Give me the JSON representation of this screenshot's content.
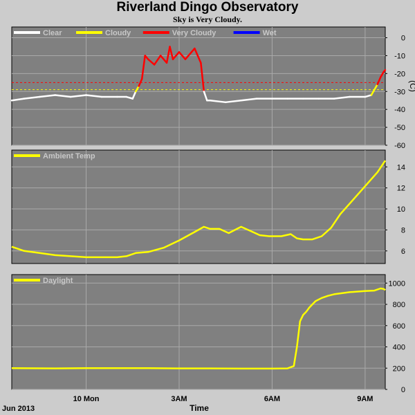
{
  "page": {
    "title": "Riverland Dingo Observatory",
    "subtitle": "Sky is Very Cloudy."
  },
  "colors": {
    "background": "#cccccc",
    "panel": "#808080",
    "grid": "#aaaaaa",
    "clear": "#ffffff",
    "cloudy": "#ffff00",
    "very_cloudy": "#ff0000",
    "wet": "#0000ff",
    "threshold_very_cloudy": "#ff0000",
    "threshold_cloudy": "#ffff00"
  },
  "x_axis": {
    "label": "Time",
    "date_label": "Jun 2013",
    "ticks": [
      {
        "h": 0.0,
        "label": "10 Mon"
      },
      {
        "h": 3.0,
        "label": "3AM"
      },
      {
        "h": 6.0,
        "label": "6AM"
      },
      {
        "h": 9.0,
        "label": "9AM"
      }
    ],
    "range_h": [
      -2.4,
      9.65
    ]
  },
  "chart_data": [
    {
      "type": "line",
      "id": "sky",
      "ylabel": "(C)",
      "ylim": [
        -60,
        6
      ],
      "yticks": [
        0,
        -10,
        -20,
        -30,
        -40,
        -50,
        -60
      ],
      "grid": true,
      "legend": [
        "Clear",
        "Cloudy",
        "Very Cloudy",
        "Wet"
      ],
      "thresholds": {
        "very_cloudy": -25,
        "cloudy": -29
      },
      "x_h": [
        -2.4,
        -2.0,
        -1.5,
        -1.0,
        -0.5,
        0.0,
        0.5,
        1.0,
        1.3,
        1.5,
        1.6,
        1.7,
        1.8,
        1.9,
        2.0,
        2.2,
        2.4,
        2.6,
        2.7,
        2.8,
        3.0,
        3.2,
        3.4,
        3.5,
        3.7,
        3.8,
        3.9,
        4.0,
        4.5,
        5.0,
        5.5,
        6.0,
        6.5,
        7.0,
        7.5,
        8.0,
        8.5,
        9.0,
        9.2,
        9.4,
        9.5,
        9.6,
        9.65
      ],
      "values": [
        -35,
        -34,
        -33,
        -32,
        -33,
        -32,
        -33,
        -33,
        -33,
        -34,
        -30,
        -27,
        -23,
        -10,
        -12,
        -15,
        -10,
        -14,
        -5,
        -12,
        -8,
        -12,
        -8,
        -6,
        -14,
        -30,
        -35,
        -35,
        -36,
        -35,
        -34,
        -34,
        -34,
        -34,
        -34,
        -34,
        -33,
        -33,
        -32,
        -26,
        -22,
        -19,
        -18
      ]
    },
    {
      "type": "line",
      "id": "ambient",
      "ylim": [
        4.8,
        15.6
      ],
      "yticks": [
        6,
        8,
        10,
        12,
        14
      ],
      "grid": true,
      "legend": [
        "Ambient Temp"
      ],
      "x_h": [
        -2.4,
        -2.0,
        -1.5,
        -1.0,
        -0.5,
        0.0,
        0.5,
        1.0,
        1.3,
        1.6,
        2.0,
        2.5,
        3.0,
        3.5,
        3.8,
        4.0,
        4.3,
        4.6,
        4.8,
        5.0,
        5.3,
        5.6,
        5.9,
        6.0,
        6.3,
        6.6,
        6.8,
        7.0,
        7.3,
        7.6,
        7.9,
        8.2,
        8.5,
        8.8,
        9.1,
        9.4,
        9.65
      ],
      "values": [
        6.4,
        6.0,
        5.8,
        5.6,
        5.5,
        5.4,
        5.4,
        5.4,
        5.5,
        5.8,
        5.9,
        6.3,
        7.0,
        7.8,
        8.3,
        8.1,
        8.1,
        7.7,
        8.0,
        8.3,
        7.9,
        7.5,
        7.4,
        7.4,
        7.4,
        7.6,
        7.2,
        7.1,
        7.1,
        7.4,
        8.2,
        9.5,
        10.5,
        11.5,
        12.5,
        13.5,
        14.6
      ]
    },
    {
      "type": "line",
      "id": "daylight",
      "ylim": [
        0,
        1080
      ],
      "yticks": [
        0,
        200,
        400,
        600,
        800,
        1000
      ],
      "grid": true,
      "legend": [
        "Daylight"
      ],
      "x_h": [
        -2.4,
        -1.0,
        0.0,
        1.0,
        2.0,
        3.0,
        4.0,
        5.0,
        6.0,
        6.5,
        6.7,
        6.8,
        6.9,
        7.0,
        7.1,
        7.2,
        7.4,
        7.6,
        7.8,
        8.0,
        8.5,
        9.0,
        9.3,
        9.5,
        9.6,
        9.65
      ],
      "values": [
        200,
        198,
        200,
        200,
        200,
        198,
        198,
        196,
        196,
        198,
        220,
        400,
        640,
        700,
        730,
        770,
        830,
        860,
        880,
        895,
        915,
        925,
        930,
        950,
        945,
        935
      ]
    }
  ]
}
